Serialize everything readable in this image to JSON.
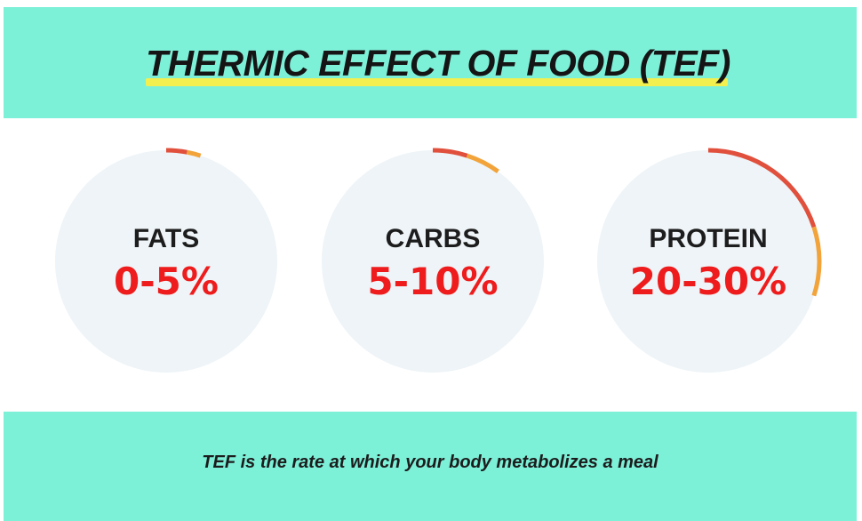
{
  "header": {
    "title": "THERMIC EFFECT OF FOOD (TEF)",
    "highlight_color": "#f2ef4f",
    "background_color": "#7df0d8"
  },
  "gauges": [
    {
      "name": "FATS",
      "value_label": "0-5%",
      "range_start_percent": 0,
      "range_end_percent": 5
    },
    {
      "name": "CARBS",
      "value_label": "5-10%",
      "range_start_percent": 5,
      "range_end_percent": 10
    },
    {
      "name": "PROTEIN",
      "value_label": "20-30%",
      "range_start_percent": 20,
      "range_end_percent": 30
    }
  ],
  "colors": {
    "gauge_track": "#eef4f7",
    "arc_red": "#e0503c",
    "arc_orange": "#f2a33a",
    "value_text": "#ee1c1c"
  },
  "footer": {
    "caption": "TEF is the rate at which your body metabolizes a meal"
  }
}
